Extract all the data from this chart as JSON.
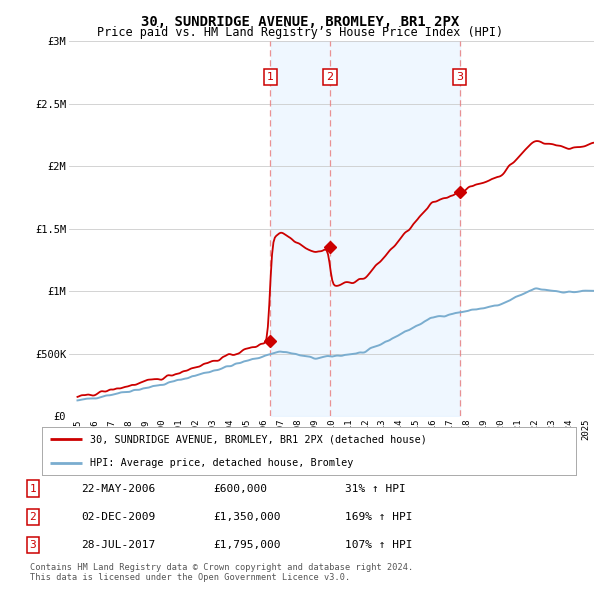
{
  "title": "30, SUNDRIDGE AVENUE, BROMLEY, BR1 2PX",
  "subtitle": "Price paid vs. HM Land Registry’s House Price Index (HPI)",
  "legend_label_red": "30, SUNDRIDGE AVENUE, BROMLEY, BR1 2PX (detached house)",
  "legend_label_blue": "HPI: Average price, detached house, Bromley",
  "footer1": "Contains HM Land Registry data © Crown copyright and database right 2024.",
  "footer2": "This data is licensed under the Open Government Licence v3.0.",
  "transactions": [
    {
      "num": 1,
      "date": "22-MAY-2006",
      "price": "£600,000",
      "hpi": "31% ↑ HPI",
      "year": 2006.38
    },
    {
      "num": 2,
      "date": "02-DEC-2009",
      "price": "£1,350,000",
      "hpi": "169% ↑ HPI",
      "year": 2009.92
    },
    {
      "num": 3,
      "date": "28-JUL-2017",
      "price": "£1,795,000",
      "hpi": "107% ↑ HPI",
      "year": 2017.57
    }
  ],
  "sale_years": [
    2006.38,
    2009.92,
    2017.57
  ],
  "sale_prices": [
    600000,
    1350000,
    1795000
  ],
  "ylim": [
    0,
    3000000
  ],
  "yticks": [
    0,
    500000,
    1000000,
    1500000,
    2000000,
    2500000,
    3000000
  ],
  "ytick_labels": [
    "£0",
    "£500K",
    "£1M",
    "£1.5M",
    "£2M",
    "£2.5M",
    "£3M"
  ],
  "xlim_start": 1994.5,
  "xlim_end": 2025.5,
  "xtick_years": [
    1995,
    1996,
    1997,
    1998,
    1999,
    2000,
    2001,
    2002,
    2003,
    2004,
    2005,
    2006,
    2007,
    2008,
    2009,
    2010,
    2011,
    2012,
    2013,
    2014,
    2015,
    2016,
    2017,
    2018,
    2019,
    2020,
    2021,
    2022,
    2023,
    2024,
    2025
  ],
  "red_color": "#cc0000",
  "blue_color": "#7aadcf",
  "blue_fill": "#d6e8f5",
  "vline_color": "#e88080",
  "dot_color": "#cc0000",
  "grid_color": "#cccccc",
  "bg_color": "#ffffff",
  "box_color": "#cc0000",
  "shade_color": "#ddeeff"
}
